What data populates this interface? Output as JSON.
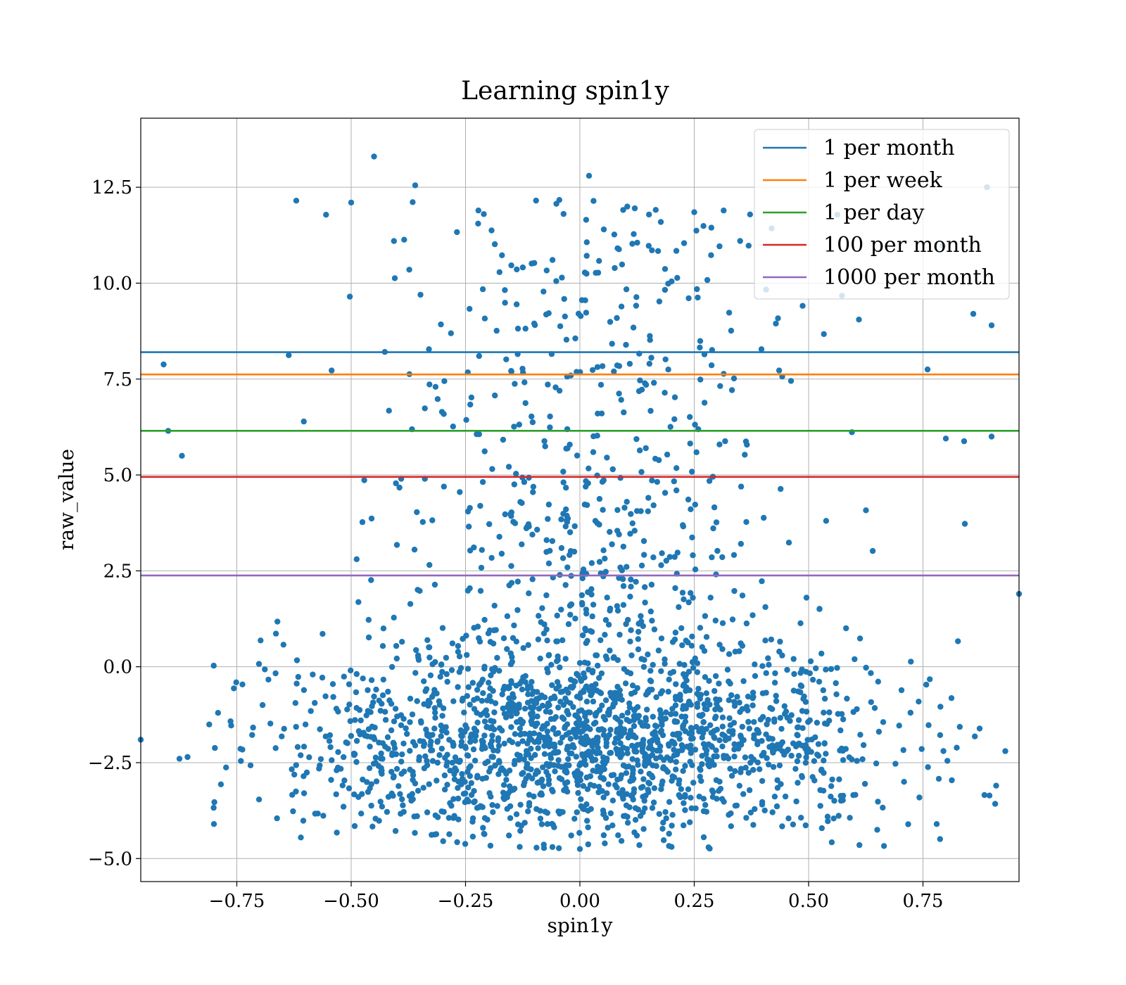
{
  "chart_data": {
    "type": "scatter",
    "title": "Learning spin1y",
    "xlabel": "spin1y",
    "ylabel": "raw_value",
    "xlim": [
      -0.96,
      0.96
    ],
    "ylim": [
      -5.6,
      14.3
    ],
    "xticks": [
      -0.75,
      -0.5,
      -0.25,
      0.0,
      0.25,
      0.5,
      0.75
    ],
    "xtick_labels": [
      "−0.75",
      "−0.50",
      "−0.25",
      "0.00",
      "0.25",
      "0.50",
      "0.75"
    ],
    "yticks": [
      -5.0,
      -2.5,
      0.0,
      2.5,
      5.0,
      7.5,
      10.0,
      12.5
    ],
    "ytick_labels": [
      "−5.0",
      "−2.5",
      "0.0",
      "2.5",
      "5.0",
      "7.5",
      "10.0",
      "12.5"
    ],
    "grid": true,
    "legend_position": "top-right",
    "scatter_color": "#1f77b4",
    "point_count": 2400,
    "hlines": [
      {
        "name": "1 per month",
        "y": 8.2,
        "color": "#1f77b4"
      },
      {
        "name": "1 per week",
        "y": 7.62,
        "color": "#ff7f0e"
      },
      {
        "name": "1 per day",
        "y": 6.15,
        "color": "#2ca02c"
      },
      {
        "name": "100 per month",
        "y": 4.95,
        "color": "#d62728"
      },
      {
        "name": "1000 per month",
        "y": 2.38,
        "color": "#9467bd"
      }
    ],
    "sample_points": [
      [
        -0.45,
        13.3
      ],
      [
        0.02,
        12.8
      ],
      [
        -0.36,
        12.55
      ],
      [
        0.89,
        12.5
      ],
      [
        -0.62,
        12.15
      ],
      [
        -0.5,
        12.1
      ],
      [
        -0.21,
        11.8
      ],
      [
        0.25,
        11.85
      ],
      [
        0.12,
        11.95
      ],
      [
        0.61,
        9.05
      ],
      [
        0.9,
        8.9
      ],
      [
        0.86,
        9.2
      ],
      [
        -0.91,
        7.88
      ],
      [
        -0.9,
        6.15
      ],
      [
        -0.87,
        5.5
      ],
      [
        0.76,
        7.75
      ],
      [
        0.8,
        5.95
      ],
      [
        0.84,
        5.88
      ],
      [
        0.9,
        6.0
      ],
      [
        0.96,
        1.9
      ],
      [
        -0.96,
        -1.9
      ],
      [
        -0.8,
        -4.1
      ],
      [
        -0.61,
        -4.45
      ],
      [
        -0.06,
        -4.7
      ],
      [
        0.0,
        -4.75
      ],
      [
        0.13,
        -4.65
      ],
      [
        0.65,
        -4.25
      ],
      [
        0.78,
        -4.1
      ],
      [
        0.91,
        -3.1
      ],
      [
        0.93,
        -2.2
      ]
    ]
  }
}
